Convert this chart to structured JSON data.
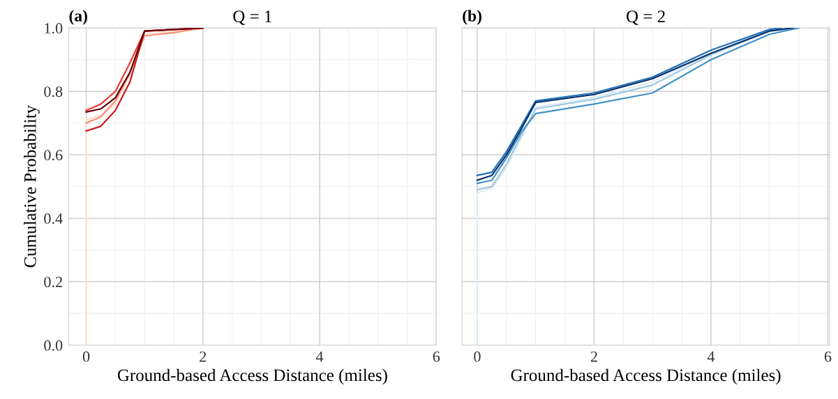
{
  "chart_data": [
    {
      "type": "line",
      "title": "Q = 1",
      "annotations": [
        "(a)"
      ],
      "xlabel": "Ground-based Access Distance (miles)",
      "ylabel": "Cumulative Probability",
      "xlim": [
        -0.3,
        6.0
      ],
      "ylim": [
        0,
        1
      ],
      "xticks": [
        0,
        2,
        4,
        6
      ],
      "yticks": [
        {
          "value": 0,
          "label": "0.0"
        },
        0.2,
        0.4,
        0.6,
        0.8,
        {
          "value": 1,
          "label": "1.0"
        }
      ],
      "grid": true,
      "line_style": "solid",
      "marker": "none",
      "series": [
        {
          "color": "#fee0d2",
          "x": [
            0,
            0,
            0.25,
            0.5,
            0.75,
            1.0,
            1.5,
            2.0
          ],
          "values": [
            0,
            0.71,
            0.725,
            0.76,
            0.85,
            0.98,
            0.99,
            1.0
          ]
        },
        {
          "color": "#fc9272",
          "x": [
            0,
            0.25,
            0.5,
            0.75,
            1.0,
            1.5,
            2.0
          ],
          "values": [
            0.7,
            0.72,
            0.77,
            0.86,
            0.975,
            0.985,
            1.0
          ]
        },
        {
          "color": "#ef3b2c",
          "x": [
            0,
            0.25,
            0.5,
            0.75,
            1.0,
            1.5,
            2.0
          ],
          "values": [
            0.74,
            0.76,
            0.8,
            0.89,
            0.99,
            0.995,
            1.0
          ]
        },
        {
          "color": "#cb181d",
          "x": [
            0,
            0.25,
            0.5,
            0.75,
            1.0,
            1.5,
            2.0
          ],
          "values": [
            0.675,
            0.69,
            0.74,
            0.83,
            0.99,
            0.995,
            1.0
          ]
        },
        {
          "color": "#67000d",
          "x": [
            0,
            0.25,
            0.5,
            0.75,
            1.0,
            1.5,
            2.0
          ],
          "values": [
            0.735,
            0.745,
            0.78,
            0.86,
            0.99,
            0.995,
            1.0
          ]
        }
      ]
    },
    {
      "type": "line",
      "title": "Q = 2",
      "annotations": [
        "(b)"
      ],
      "xlabel": "Ground-based Access Distance (miles)",
      "xlim": [
        -0.26,
        6.03
      ],
      "ylim": [
        0,
        1
      ],
      "xticks": [
        0,
        2,
        4,
        6
      ],
      "yticks": [
        0,
        0.2,
        0.4,
        0.6,
        0.8,
        1
      ],
      "tick_labels": "x",
      "grid": true,
      "line_style": "solid",
      "marker": "none",
      "series": [
        {
          "color": "#deebf7",
          "x": [
            0,
            0,
            0.25,
            0.5,
            0.75,
            1,
            2,
            3,
            4,
            5,
            5.6
          ],
          "values": [
            0,
            0.48,
            0.495,
            0.56,
            0.65,
            0.75,
            0.78,
            0.83,
            0.92,
            0.99,
            1.0
          ]
        },
        {
          "color": "#9ecae1",
          "x": [
            0,
            0.25,
            0.5,
            0.75,
            1,
            2,
            3,
            4,
            5,
            5.4
          ],
          "values": [
            0.49,
            0.5,
            0.57,
            0.66,
            0.745,
            0.775,
            0.82,
            0.915,
            0.99,
            1.0
          ]
        },
        {
          "color": "#4292c6",
          "x": [
            0,
            0.25,
            0.5,
            0.75,
            1,
            2,
            3,
            4,
            5,
            5.5
          ],
          "values": [
            0.51,
            0.52,
            0.59,
            0.67,
            0.73,
            0.76,
            0.795,
            0.9,
            0.98,
            1.0
          ]
        },
        {
          "color": "#2171b5",
          "x": [
            0,
            0.25,
            0.5,
            0.75,
            1,
            2,
            3,
            4,
            5,
            5.2
          ],
          "values": [
            0.535,
            0.545,
            0.61,
            0.69,
            0.77,
            0.795,
            0.845,
            0.93,
            0.995,
            1.0
          ]
        },
        {
          "color": "#08306b",
          "x": [
            0,
            0.25,
            0.5,
            0.75,
            1,
            2,
            3,
            4,
            5,
            5.4
          ],
          "values": [
            0.52,
            0.535,
            0.6,
            0.68,
            0.765,
            0.79,
            0.84,
            0.92,
            0.99,
            1.0
          ]
        }
      ]
    }
  ]
}
